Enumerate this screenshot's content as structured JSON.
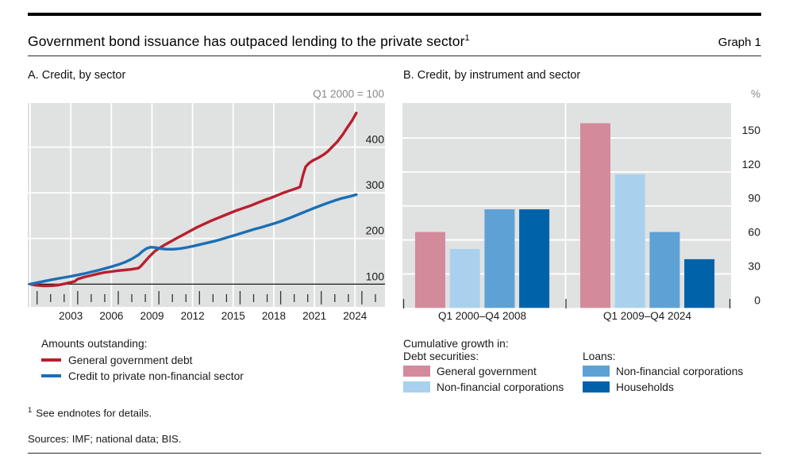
{
  "colors": {
    "text": "#1a1a1a",
    "muted": "#878787",
    "panel_bg": "#e0e1e1",
    "gridline": "#ffffff",
    "baseline": "#000000",
    "tick": "#333333",
    "red_line": "#b81f2e",
    "blue_line": "#1a6fb5",
    "bar_pink": "#d38a9b",
    "bar_lightblue": "#a9d1ee",
    "bar_midblue": "#5ea1d5",
    "bar_darkblue": "#0063aa"
  },
  "header": {
    "title": "Government bond issuance has outpaced lending to the private sector",
    "title_superscript": "1",
    "graph_label": "Graph 1"
  },
  "panel_a": {
    "title": "A. Credit, by sector",
    "legend_heading": "Amounts outstanding:",
    "legend": [
      {
        "label": "General government debt",
        "color_key": "red_line"
      },
      {
        "label": "Credit to private non-financial sector",
        "color_key": "blue_line"
      }
    ]
  },
  "panel_b": {
    "title": "B. Credit, by instrument and sector",
    "legend_heading": "Cumulative growth in:",
    "legend_columns": [
      {
        "heading": "Debt securities:",
        "items": [
          {
            "label": "General government",
            "color_key": "bar_pink"
          },
          {
            "label": "Non-financial corporations",
            "color_key": "bar_lightblue"
          }
        ]
      },
      {
        "heading": "Loans:",
        "items": [
          {
            "label": "Non-financial corporations",
            "color_key": "bar_midblue"
          },
          {
            "label": "Households",
            "color_key": "bar_darkblue"
          }
        ]
      }
    ]
  },
  "footnote": {
    "marker": "1",
    "text": "See endnotes for details."
  },
  "sources": {
    "text": "Sources: IMF; national data; BIS."
  },
  "chart_data": [
    {
      "type": "line",
      "panel": "A",
      "title": "A. Credit, by sector",
      "unit": "Q1 2000 = 100",
      "x_range": [
        2000,
        2026.2
      ],
      "y_range": [
        85,
        495
      ],
      "baseline": 100,
      "grid": true,
      "legend_position": "below",
      "x_gridline_years": [
        2000,
        2003,
        2006,
        2009,
        2012,
        2015,
        2018,
        2021,
        2024
      ],
      "x_tick_labels": [
        "2003",
        "2006",
        "2009",
        "2012",
        "2015",
        "2018",
        "2021",
        "2024"
      ],
      "y_gridlines": [
        100,
        200,
        300,
        400
      ],
      "series": [
        {
          "name": "General government debt",
          "color_key": "red_line",
          "points": [
            [
              2000.0,
              100
            ],
            [
              2000.4,
              97.5
            ],
            [
              2001.0,
              96
            ],
            [
              2001.6,
              96.5
            ],
            [
              2002.1,
              98
            ],
            [
              2002.6,
              101
            ],
            [
              2003.0,
              104
            ],
            [
              2003.3,
              106
            ],
            [
              2003.5,
              111
            ],
            [
              2004.0,
              115.5
            ],
            [
              2004.5,
              119
            ],
            [
              2005.0,
              122.5
            ],
            [
              2005.5,
              125.5
            ],
            [
              2006.0,
              127.5
            ],
            [
              2006.5,
              129.5
            ],
            [
              2007.0,
              131
            ],
            [
              2007.5,
              132.5
            ],
            [
              2008.0,
              135
            ],
            [
              2008.2,
              140
            ],
            [
              2008.5,
              150
            ],
            [
              2008.8,
              160
            ],
            [
              2009.2,
              172
            ],
            [
              2009.6,
              180
            ],
            [
              2010.0,
              187
            ],
            [
              2010.4,
              193.5
            ],
            [
              2010.8,
              200
            ],
            [
              2011.3,
              208
            ],
            [
              2011.8,
              216
            ],
            [
              2012.3,
              224
            ],
            [
              2012.8,
              231
            ],
            [
              2013.3,
              238
            ],
            [
              2013.8,
              244
            ],
            [
              2014.3,
              250
            ],
            [
              2014.8,
              256
            ],
            [
              2015.3,
              262
            ],
            [
              2015.8,
              267
            ],
            [
              2016.3,
              272
            ],
            [
              2016.8,
              278
            ],
            [
              2017.3,
              284
            ],
            [
              2017.8,
              289
            ],
            [
              2018.3,
              295
            ],
            [
              2018.8,
              301
            ],
            [
              2019.3,
              306
            ],
            [
              2019.7,
              310
            ],
            [
              2019.95,
              313
            ],
            [
              2020.15,
              338
            ],
            [
              2020.35,
              357
            ],
            [
              2020.6,
              365
            ],
            [
              2020.9,
              371
            ],
            [
              2021.3,
              377
            ],
            [
              2021.7,
              384
            ],
            [
              2022.0,
              391
            ],
            [
              2022.3,
              400
            ],
            [
              2022.7,
              412
            ],
            [
              2023.1,
              428
            ],
            [
              2023.5,
              446
            ],
            [
              2023.8,
              459
            ],
            [
              2024.1,
              475
            ]
          ]
        },
        {
          "name": "Credit to private non-financial sector",
          "color_key": "blue_line",
          "points": [
            [
              2000.0,
              100
            ],
            [
              2000.5,
              103
            ],
            [
              2001.0,
              106
            ],
            [
              2001.5,
              109
            ],
            [
              2002.0,
              112
            ],
            [
              2002.5,
              114.5
            ],
            [
              2003.0,
              117
            ],
            [
              2003.5,
              120
            ],
            [
              2004.0,
              123
            ],
            [
              2004.5,
              126.5
            ],
            [
              2005.0,
              130
            ],
            [
              2005.5,
              134
            ],
            [
              2006.0,
              138
            ],
            [
              2006.5,
              142.5
            ],
            [
              2007.0,
              148
            ],
            [
              2007.5,
              155
            ],
            [
              2008.0,
              164
            ],
            [
              2008.3,
              172
            ],
            [
              2008.6,
              178
            ],
            [
              2008.9,
              181
            ],
            [
              2009.3,
              180
            ],
            [
              2009.7,
              177.5
            ],
            [
              2010.1,
              176.5
            ],
            [
              2010.6,
              176.5
            ],
            [
              2011.1,
              178
            ],
            [
              2011.6,
              180.5
            ],
            [
              2012.1,
              183.5
            ],
            [
              2012.6,
              187
            ],
            [
              2013.1,
              190.5
            ],
            [
              2013.6,
              194
            ],
            [
              2014.1,
              198
            ],
            [
              2014.6,
              202.5
            ],
            [
              2015.1,
              207
            ],
            [
              2015.6,
              211.5
            ],
            [
              2016.1,
              216
            ],
            [
              2016.6,
              220.5
            ],
            [
              2017.1,
              224.5
            ],
            [
              2017.6,
              229
            ],
            [
              2018.1,
              233.5
            ],
            [
              2018.6,
              238.5
            ],
            [
              2019.1,
              244
            ],
            [
              2019.6,
              250
            ],
            [
              2020.1,
              256
            ],
            [
              2020.6,
              262
            ],
            [
              2021.1,
              268
            ],
            [
              2021.6,
              273.5
            ],
            [
              2022.1,
              279
            ],
            [
              2022.6,
              284
            ],
            [
              2023.1,
              288.5
            ],
            [
              2023.6,
              292
            ],
            [
              2024.1,
              296
            ]
          ]
        }
      ]
    },
    {
      "type": "bar",
      "panel": "B",
      "title": "B. Credit, by instrument and sector",
      "unit": "%",
      "grid": true,
      "legend_position": "below",
      "categories": [
        "Q1 2000–Q4 2008",
        "Q1 2009–Q4 2024"
      ],
      "y_ticks": [
        0,
        30,
        60,
        90,
        120,
        150
      ],
      "ylim": [
        0,
        181
      ],
      "series": [
        {
          "name": "Debt securities: General government",
          "color_key": "bar_pink",
          "values": [
            67,
            163
          ]
        },
        {
          "name": "Debt securities: Non-financial corporations",
          "color_key": "bar_lightblue",
          "values": [
            52,
            118
          ]
        },
        {
          "name": "Loans: Non-financial corporations",
          "color_key": "bar_midblue",
          "values": [
            87,
            67
          ]
        },
        {
          "name": "Loans: Households",
          "color_key": "bar_darkblue",
          "values": [
            87,
            43
          ]
        }
      ]
    }
  ]
}
